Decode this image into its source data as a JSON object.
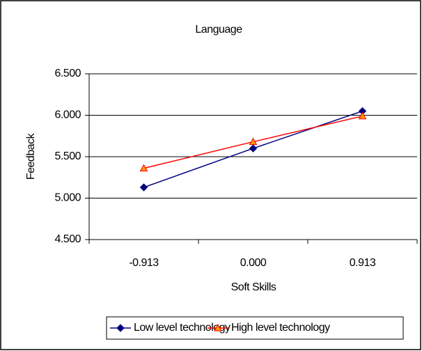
{
  "chart_data": {
    "type": "line",
    "title": "Language",
    "x_label": "Soft Skills",
    "y_label": "Feedback",
    "categories": [
      "-0.913",
      "0.000",
      "0.913"
    ],
    "series": [
      {
        "name": "Low level technology",
        "color": "#000080",
        "values": [
          5.13,
          5.6,
          6.05
        ]
      },
      {
        "name": "High level technology",
        "color": "#ff0000",
        "values": [
          5.36,
          5.68,
          5.99
        ]
      }
    ],
    "ylim": [
      4.5,
      6.5
    ],
    "yticks": [
      {
        "value": 4.5,
        "label": "4.500"
      },
      {
        "value": 5,
        "label": "5.000"
      },
      {
        "value": 5.5,
        "label": "5.500"
      },
      {
        "value": 6,
        "label": "6.000"
      },
      {
        "value": 6.5,
        "label": "6.500"
      }
    ],
    "grid": true,
    "legend": "bottom"
  }
}
